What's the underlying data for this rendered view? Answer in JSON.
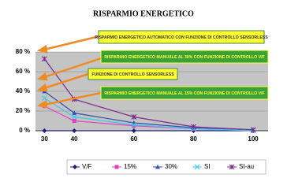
{
  "chart_data": {
    "type": "line",
    "title": "RISPARMIO ENERGETICO",
    "x": [
      30,
      40,
      60,
      80,
      100
    ],
    "xlim": [
      27,
      105
    ],
    "xticks": [
      30,
      40,
      60,
      80,
      100
    ],
    "ylim": [
      0,
      80
    ],
    "yticks": [
      {
        "value": 0,
        "label": "0 %"
      },
      {
        "value": 20,
        "label": "20 %"
      },
      {
        "value": 40,
        "label": "40 %"
      },
      {
        "value": 60,
        "label": "60 %"
      },
      {
        "value": 80,
        "label": "80 %"
      }
    ],
    "grid": true,
    "legend": "bottom",
    "series": [
      {
        "name": "V/F",
        "color": "#1f1f7a",
        "marker": "diamond",
        "values": [
          0,
          0,
          0,
          0,
          0
        ]
      },
      {
        "name": "15%",
        "color": "#e040c0",
        "marker": "square",
        "values": [
          25,
          10,
          5,
          2,
          0
        ]
      },
      {
        "name": "30%",
        "color": "#3050b0",
        "marker": "triangle",
        "values": [
          40,
          18,
          8,
          3,
          0
        ]
      },
      {
        "name": "SI",
        "color": "#40c8e8",
        "marker": "x",
        "values": [
          33,
          14,
          6,
          2,
          0
        ]
      },
      {
        "name": "SI-au",
        "color": "#7a2a8a",
        "marker": "asterisk",
        "values": [
          73,
          32,
          14,
          4,
          1
        ]
      }
    ],
    "annotations": [
      "RISPARMIO ENERGETICO AUTOMATICO CON FUNZIONE DI CONTROLLO SENSORLESS",
      "RISPARMIO ENERGETICO MANUALE AL 30% CON FUNZIONE DI CONTROLLO V/F",
      "FUNZIONE DI CONTROLLO SENSORLESS",
      "RISPARMIO ENERGETICO MANUALE AL 15% CON FUNZIONE DI CONTROLLO V/F"
    ]
  }
}
